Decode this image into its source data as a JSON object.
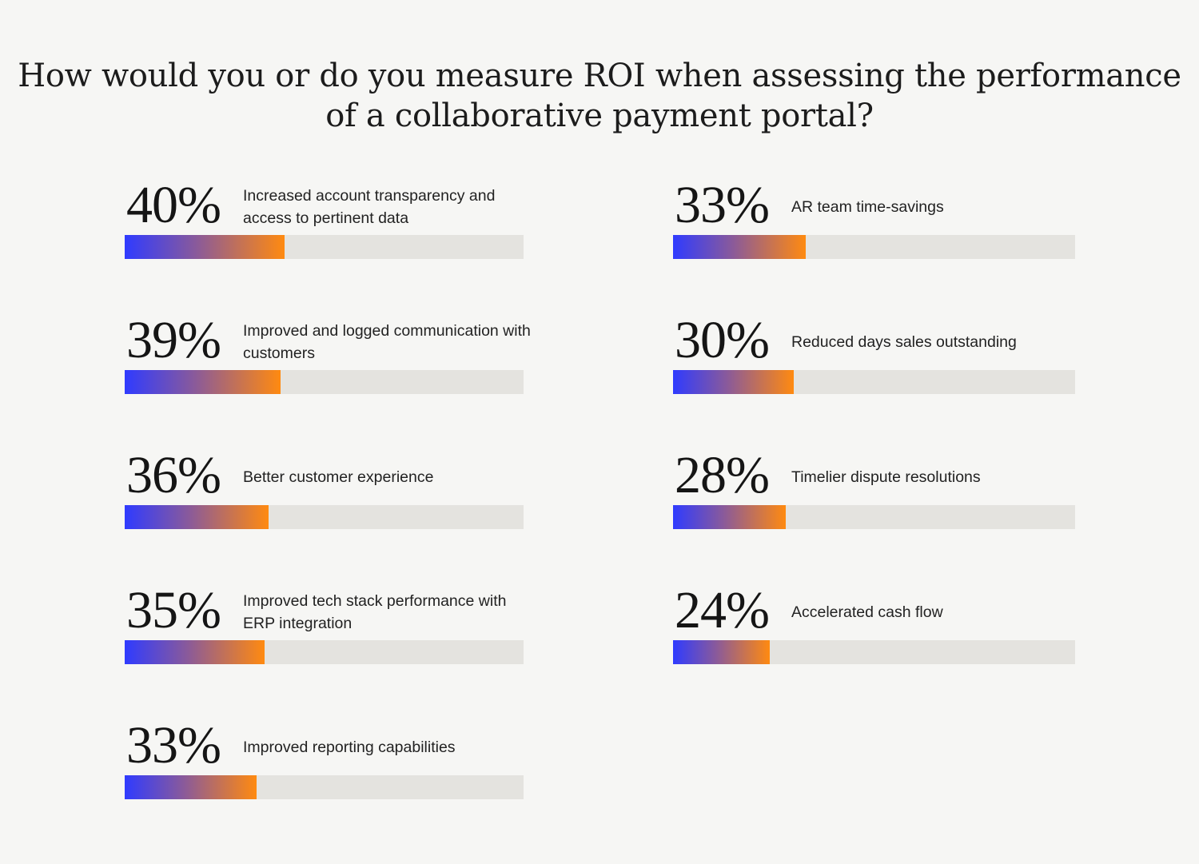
{
  "title": "How would you or do you measure ROI when assessing the performance of a collaborative payment portal?",
  "colors": {
    "gradient_start": "#2f3bff",
    "gradient_mid": "#8a5a9a",
    "gradient_end": "#ff8a10",
    "track": "#e4e3df",
    "background": "#f6f6f4"
  },
  "chart_data": {
    "type": "bar",
    "orientation": "horizontal",
    "title": "How would you or do you measure ROI when assessing the performance of a collaborative payment portal?",
    "unit": "%",
    "xlim": [
      0,
      100
    ],
    "grid": false,
    "categories": [
      "Increased account transparency and access to pertinent data",
      "Improved and logged communication with customers",
      "Better customer experience",
      "Improved tech stack performance with ERP integration",
      "Improved reporting capabilities",
      "AR team time-savings",
      "Reduced days sales outstanding",
      "Timelier dispute resolutions",
      "Accelerated cash flow"
    ],
    "values": [
      40,
      39,
      36,
      35,
      33,
      33,
      30,
      28,
      24
    ],
    "value_labels": [
      "40%",
      "39%",
      "36%",
      "35%",
      "33%",
      "33%",
      "30%",
      "28%",
      "24%"
    ]
  }
}
